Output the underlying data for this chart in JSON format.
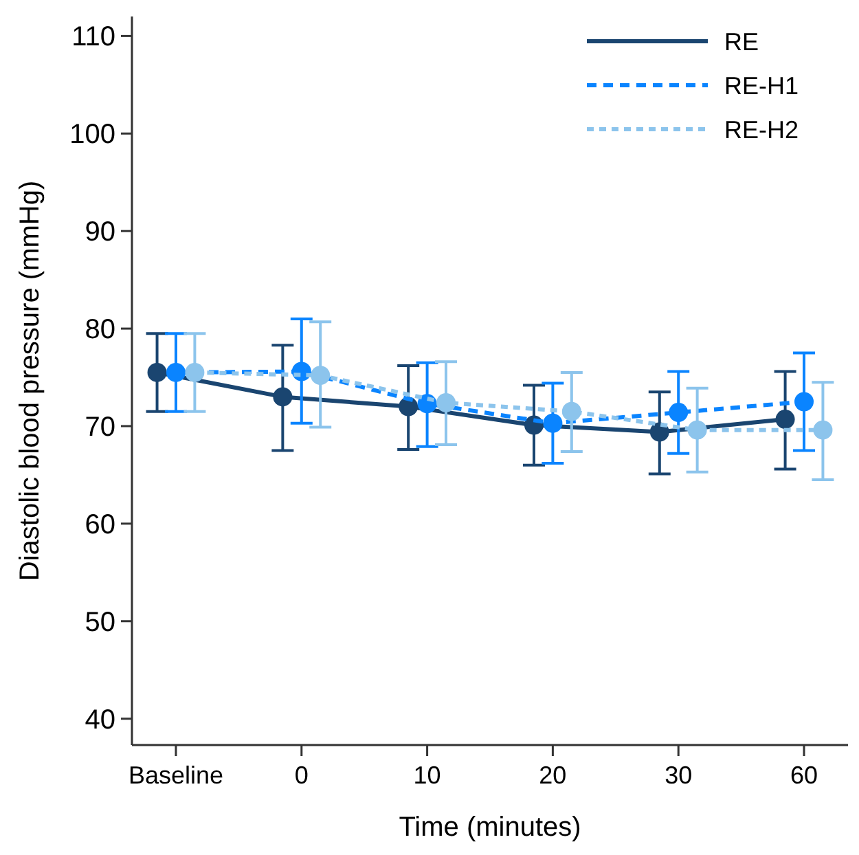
{
  "chart_data": {
    "type": "line",
    "xlabel": "Time (minutes)",
    "ylabel": "Diastolic blood pressure (mmHg)",
    "categories": [
      "Baseline",
      "0",
      "10",
      "20",
      "30",
      "60"
    ],
    "ylim": [
      37.3,
      112
    ],
    "yticks": [
      40,
      50,
      60,
      70,
      80,
      90,
      100,
      110
    ],
    "grid": false,
    "legend": "top right",
    "marker": "circle",
    "series": [
      {
        "name": "RE",
        "color": "#1a4570",
        "line_style": "solid",
        "values": [
          75.5,
          73.0,
          72.0,
          70.1,
          69.4,
          70.7
        ],
        "errors": [
          [
            71.5,
            79.5
          ],
          [
            67.5,
            78.3
          ],
          [
            67.6,
            76.2
          ],
          [
            66.0,
            74.2
          ],
          [
            65.1,
            73.5
          ],
          [
            65.6,
            75.6
          ]
        ]
      },
      {
        "name": "RE-H1",
        "color": "#0a84ff",
        "line_style": "dashed",
        "values": [
          75.5,
          75.6,
          72.3,
          70.3,
          71.4,
          72.5
        ],
        "errors": [
          [
            71.5,
            79.5
          ],
          [
            70.3,
            81.0
          ],
          [
            67.9,
            76.5
          ],
          [
            66.2,
            74.4
          ],
          [
            67.2,
            75.6
          ],
          [
            67.5,
            77.5
          ]
        ]
      },
      {
        "name": "RE-H2",
        "color": "#8cc4ec",
        "line_style": "dashed",
        "values": [
          75.5,
          75.2,
          72.4,
          71.5,
          69.6,
          69.6
        ],
        "errors": [
          [
            71.5,
            79.5
          ],
          [
            69.9,
            80.7
          ],
          [
            68.1,
            76.6
          ],
          [
            67.4,
            75.5
          ],
          [
            65.3,
            73.9
          ],
          [
            64.5,
            74.5
          ]
        ]
      }
    ]
  }
}
